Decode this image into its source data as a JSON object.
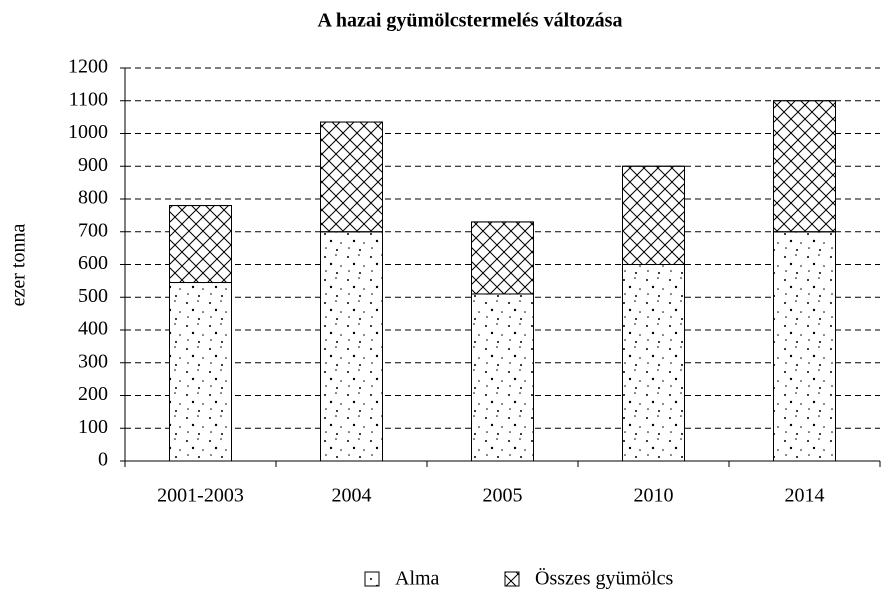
{
  "chart_data": {
    "type": "stacked_bar",
    "title": "A hazai gyümölcstermelés változása",
    "ylabel": "ezer tonna",
    "categories": [
      "2001-2003",
      "2004",
      "2005",
      "2010",
      "2014"
    ],
    "series": [
      {
        "name": "Alma",
        "color": "#000000",
        "pattern": "dots",
        "values": [
          545,
          700,
          510,
          600,
          700
        ]
      },
      {
        "name": "Összes gyümölcs",
        "color": "#000000",
        "pattern": "crosshatch",
        "values": [
          235,
          335,
          220,
          300,
          400
        ]
      }
    ],
    "ylim": [
      0,
      1200
    ],
    "yticks": [
      0,
      100,
      200,
      300,
      400,
      500,
      600,
      700,
      800,
      900,
      1000,
      1100,
      1200
    ],
    "grid": true,
    "legend": "bottom"
  }
}
